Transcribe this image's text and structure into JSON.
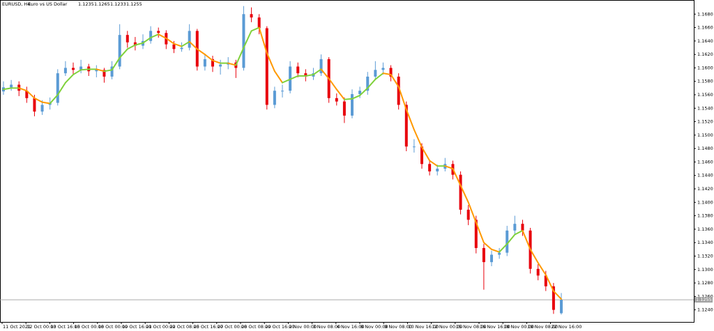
{
  "chart_data": {
    "type": "candlestick",
    "title": "EURUSD, H4:",
    "description": "Euro vs US Dollar",
    "header_values": [
      1.1235,
      1.1265,
      1.1233,
      1.1255
    ],
    "up_color": "#5b9bd5",
    "down_color": "#e8000b",
    "ma_up_color": "#7fd13b",
    "ma_down_color": "#ff9900",
    "price_line_color": "#a0a0a0",
    "last_price": 1.1255,
    "ylim": [
      1.1222,
      1.1701
    ],
    "yticks": [
      {
        "value": 1.168,
        "label": "1.1680"
      },
      {
        "value": 1.166,
        "label": "1.1660"
      },
      {
        "value": 1.164,
        "label": "1.1640"
      },
      {
        "value": 1.162,
        "label": "1.1620"
      },
      {
        "value": 1.16,
        "label": "1.1600"
      },
      {
        "value": 1.158,
        "label": "1.1580"
      },
      {
        "value": 1.156,
        "label": "1.1560"
      },
      {
        "value": 1.154,
        "label": "1.1540"
      },
      {
        "value": 1.152,
        "label": "1.1520"
      },
      {
        "value": 1.15,
        "label": "1.1500"
      },
      {
        "value": 1.148,
        "label": "1.1480"
      },
      {
        "value": 1.146,
        "label": "1.1460"
      },
      {
        "value": 1.144,
        "label": "1.1440"
      },
      {
        "value": 1.142,
        "label": "1.1420"
      },
      {
        "value": 1.14,
        "label": "1.1400"
      },
      {
        "value": 1.138,
        "label": "1.1380"
      },
      {
        "value": 1.136,
        "label": "1.1360"
      },
      {
        "value": 1.134,
        "label": "1.1340"
      },
      {
        "value": 1.132,
        "label": "1.1320"
      },
      {
        "value": 1.13,
        "label": "1.1300"
      },
      {
        "value": 1.128,
        "label": "1.1280"
      },
      {
        "value": 1.126,
        "label": "1.1260"
      },
      {
        "value": 1.124,
        "label": "1.1240"
      }
    ],
    "x_labels": [
      "11 Oct 2021",
      "12 Oct 00:00",
      "13 Oct 16:00",
      "15 Oct 00:00",
      "18 Oct 00:00",
      "19 Oct 16:00",
      "21 Oct 00:00",
      "22 Oct 08:00",
      "25 Oct 16:00",
      "27 Oct 00:00",
      "28 Oct 08:00",
      "29 Oct 16:00",
      "2 Nov 00:00",
      "3 Nov 08:00",
      "4 Nov 16:00",
      "8 Nov 00:00",
      "9 Nov 08:00",
      "10 Nov 16:00",
      "12 Nov 00:00",
      "15 Nov 08:00",
      "16 Nov 16:00",
      "18 Nov 00:00",
      "19 Nov 08:00",
      "22 Nov 16:00"
    ],
    "candles": [
      [
        1.1565,
        1.158,
        1.156,
        1.1571
      ],
      [
        1.1571,
        1.1582,
        1.1566,
        1.1575
      ],
      [
        1.1575,
        1.158,
        1.1558,
        1.1566
      ],
      [
        1.1566,
        1.1572,
        1.1548,
        1.1555
      ],
      [
        1.1555,
        1.156,
        1.1528,
        1.1535
      ],
      [
        1.1535,
        1.1552,
        1.153,
        1.1545
      ],
      [
        1.1545,
        1.1556,
        1.1538,
        1.1548
      ],
      [
        1.1548,
        1.1598,
        1.1544,
        1.1592
      ],
      [
        1.1592,
        1.161,
        1.1588,
        1.16
      ],
      [
        1.16,
        1.1608,
        1.159,
        1.1597
      ],
      [
        1.1597,
        1.1612,
        1.1592,
        1.1602
      ],
      [
        1.1602,
        1.1606,
        1.1588,
        1.1595
      ],
      [
        1.1595,
        1.1604,
        1.1586,
        1.1597
      ],
      [
        1.1597,
        1.16,
        1.1578,
        1.1587
      ],
      [
        1.1587,
        1.161,
        1.1583,
        1.1602
      ],
      [
        1.1602,
        1.1665,
        1.1598,
        1.1649
      ],
      [
        1.1649,
        1.1655,
        1.163,
        1.1638
      ],
      [
        1.1638,
        1.1646,
        1.1626,
        1.1633
      ],
      [
        1.1633,
        1.165,
        1.1628,
        1.164
      ],
      [
        1.164,
        1.1662,
        1.1636,
        1.1655
      ],
      [
        1.1655,
        1.166,
        1.1645,
        1.1652
      ],
      [
        1.1652,
        1.1656,
        1.1628,
        1.1635
      ],
      [
        1.1635,
        1.164,
        1.1622,
        1.1628
      ],
      [
        1.1628,
        1.1638,
        1.1624,
        1.163
      ],
      [
        1.163,
        1.1665,
        1.1626,
        1.1655
      ],
      [
        1.1655,
        1.1658,
        1.1596,
        1.1602
      ],
      [
        1.1602,
        1.162,
        1.1596,
        1.1613
      ],
      [
        1.1613,
        1.1618,
        1.1594,
        1.1602
      ],
      [
        1.1602,
        1.1612,
        1.159,
        1.1605
      ],
      [
        1.1605,
        1.1616,
        1.1598,
        1.1608
      ],
      [
        1.1608,
        1.1612,
        1.1585,
        1.16
      ],
      [
        1.16,
        1.1692,
        1.1596,
        1.168
      ],
      [
        1.168,
        1.169,
        1.1668,
        1.1675
      ],
      [
        1.1675,
        1.168,
        1.165,
        1.1659
      ],
      [
        1.1659,
        1.1662,
        1.1538,
        1.1545
      ],
      [
        1.1545,
        1.1572,
        1.154,
        1.1566
      ],
      [
        1.1566,
        1.1575,
        1.1556,
        1.1566
      ],
      [
        1.1566,
        1.161,
        1.1562,
        1.1602
      ],
      [
        1.1602,
        1.1608,
        1.1586,
        1.1592
      ],
      [
        1.1592,
        1.1598,
        1.158,
        1.1587
      ],
      [
        1.1587,
        1.16,
        1.1582,
        1.1592
      ],
      [
        1.1592,
        1.162,
        1.1588,
        1.1613
      ],
      [
        1.1613,
        1.1616,
        1.1548,
        1.1555
      ],
      [
        1.1555,
        1.1562,
        1.1544,
        1.155
      ],
      [
        1.155,
        1.1556,
        1.1518,
        1.1529
      ],
      [
        1.1529,
        1.1568,
        1.1525,
        1.1561
      ],
      [
        1.1561,
        1.1572,
        1.1555,
        1.1566
      ],
      [
        1.1566,
        1.1594,
        1.156,
        1.1587
      ],
      [
        1.1587,
        1.161,
        1.1582,
        1.1597
      ],
      [
        1.1597,
        1.1608,
        1.159,
        1.16
      ],
      [
        1.16,
        1.1604,
        1.158,
        1.1587
      ],
      [
        1.1587,
        1.1592,
        1.1538,
        1.1545
      ],
      [
        1.1545,
        1.155,
        1.1476,
        1.1483
      ],
      [
        1.1483,
        1.1494,
        1.1474,
        1.1483
      ],
      [
        1.1483,
        1.1488,
        1.145,
        1.1457
      ],
      [
        1.1457,
        1.1462,
        1.144,
        1.1446
      ],
      [
        1.1446,
        1.1456,
        1.144,
        1.145
      ],
      [
        1.145,
        1.1466,
        1.1446,
        1.1457
      ],
      [
        1.1457,
        1.1462,
        1.1434,
        1.1441
      ],
      [
        1.1441,
        1.1446,
        1.1382,
        1.1389
      ],
      [
        1.1389,
        1.1396,
        1.1366,
        1.1374
      ],
      [
        1.1374,
        1.138,
        1.1324,
        1.1332
      ],
      [
        1.1332,
        1.1338,
        1.127,
        1.1311
      ],
      [
        1.1311,
        1.1328,
        1.1305,
        1.1322
      ],
      [
        1.1322,
        1.1332,
        1.1316,
        1.1325
      ],
      [
        1.1325,
        1.1365,
        1.132,
        1.1358
      ],
      [
        1.1358,
        1.138,
        1.1352,
        1.1368
      ],
      [
        1.1368,
        1.1374,
        1.135,
        1.1358
      ],
      [
        1.1358,
        1.1362,
        1.1294,
        1.1301
      ],
      [
        1.1301,
        1.1308,
        1.1284,
        1.1291
      ],
      [
        1.1291,
        1.1298,
        1.1268,
        1.1275
      ],
      [
        1.1275,
        1.128,
        1.1234,
        1.124
      ],
      [
        1.1235,
        1.1265,
        1.1233,
        1.1255
      ]
    ],
    "ma_values": [
      1.1568,
      1.157,
      1.157,
      1.1566,
      1.1555,
      1.1549,
      1.1547,
      1.156,
      1.1578,
      1.159,
      1.1597,
      1.1598,
      1.1598,
      1.1595,
      1.1597,
      1.1615,
      1.1628,
      1.1634,
      1.1637,
      1.1645,
      1.165,
      1.1644,
      1.1636,
      1.1632,
      1.1639,
      1.1628,
      1.162,
      1.1611,
      1.1607,
      1.1607,
      1.1604,
      1.163,
      1.1655,
      1.166,
      1.1622,
      1.1595,
      1.1578,
      1.1583,
      1.1588,
      1.1588,
      1.159,
      1.1598,
      1.1584,
      1.1568,
      1.1553,
      1.1554,
      1.1559,
      1.157,
      1.1583,
      1.1592,
      1.159,
      1.1572,
      1.1538,
      1.1508,
      1.1482,
      1.1462,
      1.1454,
      1.1454,
      1.145,
      1.1425,
      1.14,
      1.137,
      1.134,
      1.133,
      1.1326,
      1.1338,
      1.1352,
      1.1358,
      1.133,
      1.131,
      1.1292,
      1.1268,
      1.1256
    ]
  }
}
